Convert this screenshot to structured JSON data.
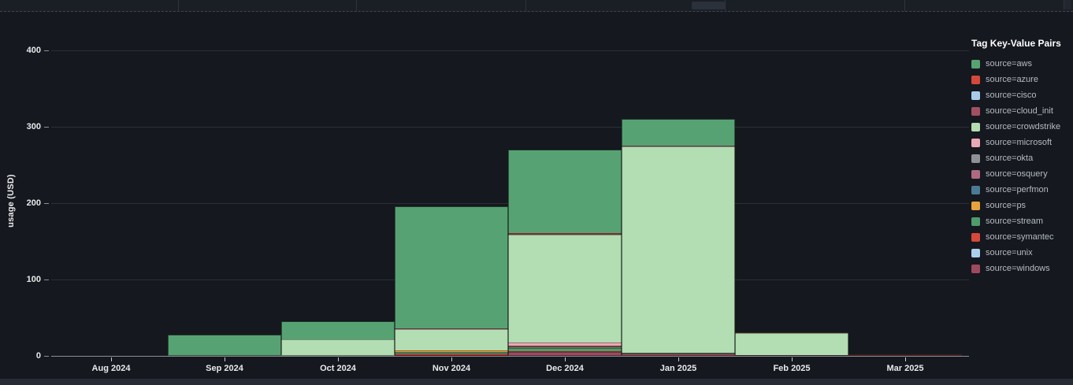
{
  "panel": {
    "ylabel": "usage (USD)",
    "legend_title": "Tag Key-Value Pairs"
  },
  "chart_data": {
    "type": "bar",
    "stacked": true,
    "title": "",
    "xlabel": "",
    "ylabel": "usage (USD)",
    "legend_title": "Tag Key-Value Pairs",
    "legend_position": "right",
    "grid": true,
    "ylim": [
      0,
      420
    ],
    "y_ticks": [
      0,
      100,
      200,
      300,
      400
    ],
    "stack_order": "last-series-at-bottom, first-series (aws) on top",
    "categories": [
      "Aug 2024",
      "Sep 2024",
      "Oct 2024",
      "Nov 2024",
      "Dec 2024",
      "Jan 2025",
      "Feb 2025",
      "Mar 2025"
    ],
    "series": [
      {
        "name": "source=aws",
        "color": "#57a273",
        "values": [
          0,
          28,
          23.5,
          160,
          109,
          35,
          0,
          0
        ]
      },
      {
        "name": "source=azure",
        "color": "#d6493a",
        "values": [
          0,
          0,
          0,
          0,
          0.5,
          0,
          1,
          0
        ]
      },
      {
        "name": "source=cisco",
        "color": "#a9cbe9",
        "values": [
          0,
          0,
          0,
          0,
          0,
          0,
          0,
          0
        ]
      },
      {
        "name": "source=cloud_init",
        "color": "#a34f63",
        "values": [
          0,
          0,
          0,
          1,
          1.5,
          1,
          0,
          0
        ]
      },
      {
        "name": "source=crowdstrike",
        "color": "#b3ddb2",
        "values": [
          0,
          0,
          21.5,
          28,
          141,
          270,
          29,
          0
        ]
      },
      {
        "name": "source=microsoft",
        "color": "#eca8b4",
        "values": [
          0,
          0,
          0,
          0,
          4,
          0,
          0,
          0
        ]
      },
      {
        "name": "source=okta",
        "color": "#8e9297",
        "values": [
          0,
          0,
          0,
          0,
          0,
          0,
          0,
          0
        ]
      },
      {
        "name": "source=osquery",
        "color": "#ae6a81",
        "values": [
          0,
          0,
          0,
          0,
          1,
          0,
          0,
          0
        ]
      },
      {
        "name": "source=perfmon",
        "color": "#4a7a96",
        "values": [
          0,
          0,
          0,
          0,
          0.5,
          0,
          0,
          0
        ]
      },
      {
        "name": "source=ps",
        "color": "#e6a33d",
        "values": [
          0,
          0,
          0,
          2,
          1.5,
          0,
          0,
          0
        ]
      },
      {
        "name": "source=stream",
        "color": "#4f9c6c",
        "values": [
          0,
          0,
          0,
          2,
          4,
          1,
          0,
          0
        ]
      },
      {
        "name": "source=symantec",
        "color": "#d6483a",
        "values": [
          0,
          0,
          0,
          2,
          1,
          0,
          0,
          0.5
        ]
      },
      {
        "name": "source=unix",
        "color": "#abd0ee",
        "values": [
          0,
          0,
          0,
          0,
          0,
          0,
          0,
          0
        ]
      },
      {
        "name": "source=windows",
        "color": "#9d4a5f",
        "values": [
          0,
          0,
          0,
          1,
          5,
          3,
          1,
          1
        ]
      }
    ],
    "totals_usd": {
      "Aug 2024": 0,
      "Sep 2024": 28,
      "Oct 2024": 45,
      "Nov 2024": 196,
      "Dec 2024": 269,
      "Jan 2025": 310,
      "Feb 2025": 31,
      "Mar 2025": 1.5
    }
  },
  "layout_colors": {
    "background": "#15181e",
    "grid": "#2b3037",
    "axis": "#8b9197",
    "tick_text": "#e9eaec",
    "legend_text": "#b5bbc3"
  }
}
